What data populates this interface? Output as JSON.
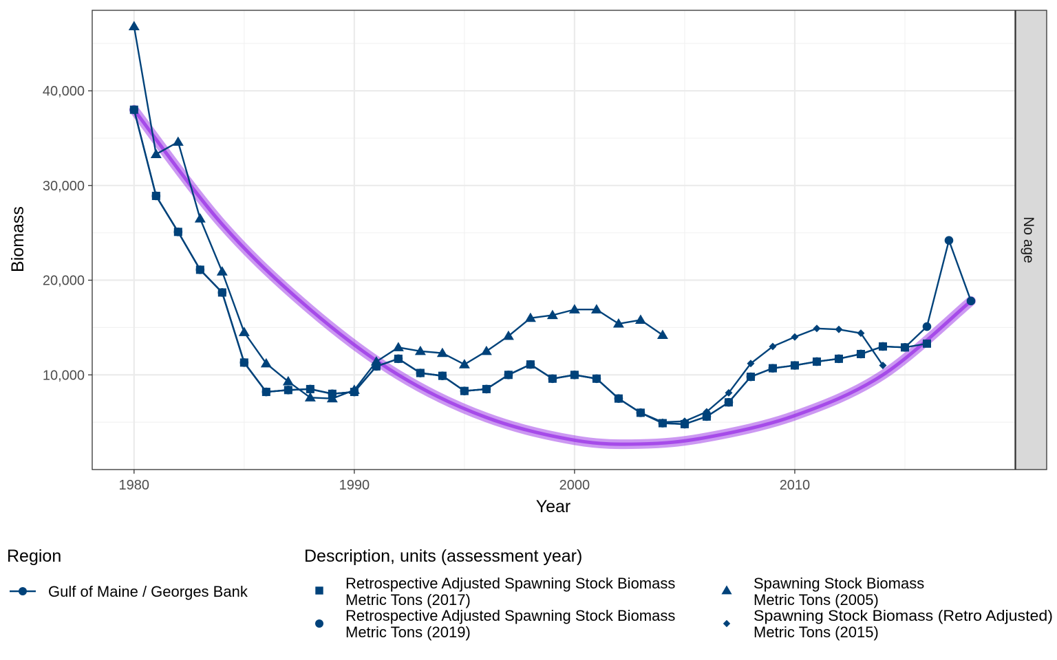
{
  "chart_data": {
    "type": "line",
    "xlabel": "Year",
    "ylabel": "Biomass",
    "facet_label": "No age",
    "xlim": [
      1978.1,
      2020.0
    ],
    "ylim": [
      0,
      48500
    ],
    "x_ticks": [
      {
        "value": 1980,
        "label": "1980"
      },
      {
        "value": 1990,
        "label": "1990"
      },
      {
        "value": 2000,
        "label": "2000"
      },
      {
        "value": 2010,
        "label": "2010"
      }
    ],
    "y_ticks": [
      {
        "value": 10000,
        "label": "10,000"
      },
      {
        "value": 20000,
        "label": "20,000"
      },
      {
        "value": 30000,
        "label": "30,000"
      },
      {
        "value": 40000,
        "label": "40,000"
      }
    ],
    "grid": true,
    "line_color": "#00427a",
    "trend_color": "#9a32e6",
    "series": [
      {
        "key": "sq2017",
        "shape": "square",
        "x": [
          1980,
          1981,
          1982,
          1983,
          1984,
          1985,
          1986,
          1987,
          1988,
          1989,
          1990,
          1991,
          1992,
          1993,
          1994,
          1995,
          1996,
          1997,
          1998,
          1999,
          2000,
          2001,
          2002,
          2003,
          2004,
          2005,
          2006,
          2007,
          2008,
          2009,
          2010,
          2011,
          2012,
          2013,
          2014,
          2015,
          2016
        ],
        "y": [
          38000,
          28900,
          25100,
          21100,
          18700,
          11300,
          8200,
          8400,
          8500,
          8000,
          8200,
          10900,
          11700,
          10200,
          9900,
          8300,
          8500,
          10000,
          11100,
          9600,
          10000,
          9600,
          7500,
          6000,
          4900,
          4800,
          5600,
          7100,
          9800,
          10700,
          11000,
          11400,
          11700,
          12200,
          13000,
          12900,
          13300
        ]
      },
      {
        "key": "tri2005",
        "shape": "triangle",
        "x": [
          1980,
          1981,
          1982,
          1983,
          1984,
          1985,
          1986,
          1987,
          1988,
          1989,
          1990,
          1991,
          1992,
          1993,
          1994,
          1995,
          1996,
          1997,
          1998,
          1999,
          2000,
          2001,
          2002,
          2003,
          2004
        ],
        "y": [
          46800,
          33300,
          34600,
          26500,
          20900,
          14500,
          11200,
          9300,
          7600,
          7500,
          8400,
          11400,
          12900,
          12500,
          12300,
          11100,
          12500,
          14100,
          16000,
          16300,
          16900,
          16900,
          15400,
          15800,
          14200
        ]
      },
      {
        "key": "dia2015",
        "shape": "diamond",
        "x": [
          1980,
          1981,
          1982,
          1983,
          1984,
          1985,
          1986,
          1987,
          1988,
          1989,
          1990,
          1991,
          1992,
          1993,
          1994,
          1995,
          1996,
          1997,
          1998,
          1999,
          2000,
          2001,
          2002,
          2003,
          2004,
          2005,
          2006,
          2007,
          2008,
          2009,
          2010,
          2011,
          2012,
          2013,
          2014
        ],
        "y": [
          38000,
          28900,
          25100,
          21100,
          18700,
          11300,
          8200,
          8400,
          8500,
          8000,
          8200,
          10900,
          11700,
          10200,
          9900,
          8300,
          8500,
          10000,
          11100,
          9600,
          10000,
          9600,
          7500,
          6000,
          5000,
          5100,
          6100,
          8100,
          11200,
          13000,
          14000,
          14900,
          14800,
          14400,
          11000
        ]
      },
      {
        "key": "circ2019",
        "shape": "circle",
        "x": [
          1980,
          1981,
          1982,
          1983,
          1984,
          1985,
          1986,
          1987,
          1988,
          1989,
          1990,
          1991,
          1992,
          1993,
          1994,
          1995,
          1996,
          1997,
          1998,
          1999,
          2000,
          2001,
          2002,
          2003,
          2004,
          2005,
          2006,
          2007,
          2008,
          2009,
          2010,
          2011,
          2012,
          2013,
          2014,
          2015,
          2016,
          2017,
          2018
        ],
        "y": [
          38000,
          28900,
          25100,
          21100,
          18700,
          11300,
          8200,
          8400,
          8500,
          8000,
          8200,
          10900,
          11700,
          10200,
          9900,
          8300,
          8500,
          10000,
          11100,
          9600,
          10000,
          9600,
          7500,
          6000,
          4900,
          4800,
          5600,
          7100,
          9800,
          10700,
          11000,
          11400,
          11700,
          12200,
          13000,
          12900,
          15100,
          24200,
          17800
        ]
      }
    ],
    "trend": {
      "x": [
        1980,
        1984,
        1988,
        1992,
        1996,
        2000,
        2003,
        2006,
        2010,
        2014,
        2018
      ],
      "y": [
        38000,
        25900,
        16900,
        10000,
        5500,
        3100,
        2700,
        3400,
        5700,
        10000,
        17800
      ]
    }
  },
  "legend": {
    "region_title": "Region",
    "region_label": "Gulf of Maine / Georges Bank",
    "desc_title": "Description, units (assessment year)",
    "items": [
      {
        "shape": "square",
        "line1": "Retrospective Adjusted Spawning Stock Biomass",
        "line2": "Metric Tons (2017)"
      },
      {
        "shape": "circle",
        "line1": "Retrospective Adjusted Spawning Stock Biomass",
        "line2": "Metric Tons (2019)"
      },
      {
        "shape": "triangle",
        "line1": "Spawning Stock Biomass",
        "line2": "Metric Tons (2005)"
      },
      {
        "shape": "diamond",
        "line1": "Spawning Stock Biomass (Retro Adjusted)",
        "line2": "Metric Tons (2015)"
      }
    ]
  }
}
